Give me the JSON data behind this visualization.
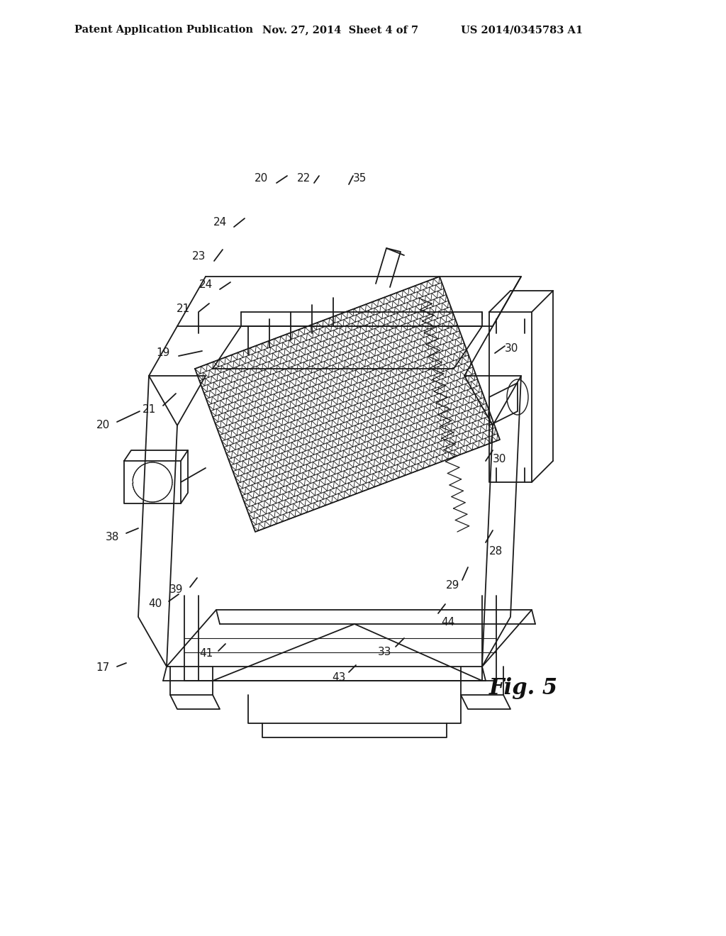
{
  "bg_color": "#ffffff",
  "header_left": "Patent Application Publication",
  "header_mid": "Nov. 27, 2014  Sheet 4 of 7",
  "header_right": "US 2014/0345783 A1",
  "fig_label": "Fig. 5"
}
